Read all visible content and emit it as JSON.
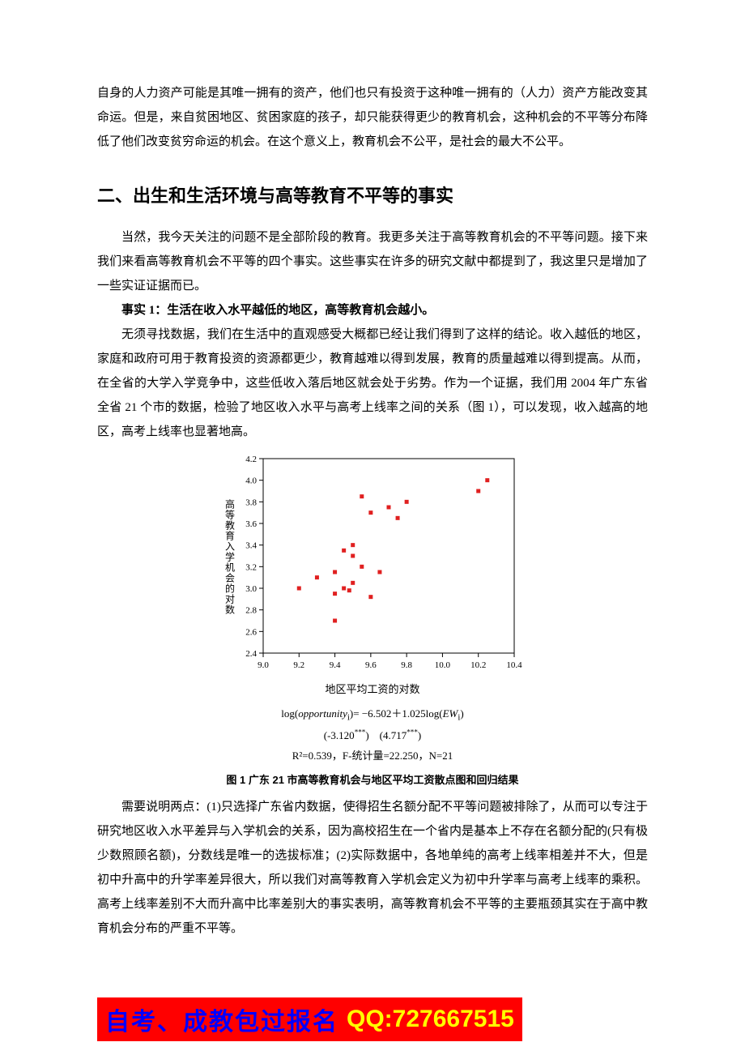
{
  "intro_paragraph": "自身的人力资产可能是其唯一拥有的资产，他们也只有投资于这种唯一拥有的（人力）资产方能改变其命运。但是，来自贫困地区、贫困家庭的孩子，却只能获得更少的教育机会，这种机会的不平等分布降低了他们改变贫穷命运的机会。在这个意义上，教育机会不公平，是社会的最大不公平。",
  "section_heading": "二、出生和生活环境与高等教育不平等的事实",
  "p2": "当然，我今天关注的问题不是全部阶段的教育。我更多关注于高等教育机会的不平等问题。接下来我们来看高等教育机会不平等的四个事实。这些事实在许多的研究文献中都提到了，我这里只是增加了一些实证证据而已。",
  "fact1_label": "事实 1：生活在收入水平越低的地区，高等教育机会越小。",
  "p3": "无须寻找数据，我们在生活中的直观感受大概都已经让我们得到了这样的结论。收入越低的地区，家庭和政府可用于教育投资的资源都更少，教育越难以得到发展，教育的质量越难以得到提高。从而，在全省的大学入学竞争中，这些低收入落后地区就会处于劣势。作为一个证据，我们用 2004 年广东省全省 21 个市的数据，检验了地区收入水平与高考上线率之间的关系（图 1），可以发现，收入越高的地区，高考上线率也显著地高。",
  "chart": {
    "type": "scatter",
    "y_label": "高等教育入学机会的对数",
    "x_label": "地区平均工资的对数",
    "xlim": [
      9.0,
      10.4
    ],
    "ylim": [
      2.4,
      4.2
    ],
    "xticks": [
      9.0,
      9.2,
      9.4,
      9.6,
      9.8,
      10.0,
      10.2,
      10.4
    ],
    "yticks": [
      2.4,
      2.6,
      2.8,
      3.0,
      3.2,
      3.4,
      3.6,
      3.8,
      4.0,
      4.2
    ],
    "marker_color": "#e02020",
    "marker_size": 5,
    "border_color": "#000000",
    "background_color": "#ffffff",
    "tick_fontsize": 11,
    "label_fontsize": 12,
    "points": [
      [
        9.2,
        3.0
      ],
      [
        9.3,
        3.1
      ],
      [
        9.4,
        2.7
      ],
      [
        9.4,
        2.95
      ],
      [
        9.4,
        3.15
      ],
      [
        9.45,
        3.0
      ],
      [
        9.45,
        3.35
      ],
      [
        9.48,
        2.98
      ],
      [
        9.5,
        3.05
      ],
      [
        9.5,
        3.3
      ],
      [
        9.5,
        3.4
      ],
      [
        9.55,
        3.2
      ],
      [
        9.55,
        3.85
      ],
      [
        9.6,
        2.92
      ],
      [
        9.6,
        3.7
      ],
      [
        9.65,
        3.15
      ],
      [
        9.7,
        3.75
      ],
      [
        9.75,
        3.65
      ],
      [
        9.8,
        3.8
      ],
      [
        10.2,
        3.9
      ],
      [
        10.25,
        4.0
      ]
    ]
  },
  "equation_line": "log(opportunity_i)= −6.502＋1.025log(EW_i)",
  "tstats_line": "(-3.120***)　(4.717***)",
  "rsq_line": "R²=0.539，F-统计量=22.250，N=21",
  "caption": "图 1  广东 21 市高等教育机会与地区平均工资散点图和回归结果",
  "p4": "需要说明两点：(1)只选择广东省内数据，使得招生名额分配不平等问题被排除了，从而可以专注于研究地区收入水平差异与入学机会的关系，因为高校招生在一个省内是基本上不存在名额分配的(只有极少数照顾名额)，分数线是唯一的选拔标准；(2)实际数据中，各地单纯的高考上线率相差并不大，但是初中升高中的升学率差异很大，所以我们对高等教育入学机会定义为初中升学率与高考上线率的乘积。高考上线率差别不大而升高中比率差别大的事实表明，高等教育机会不平等的主要瓶颈其实在于高中教育机会分布的严重不平等。",
  "banner": {
    "left": "自考、成教包过报名",
    "right": "QQ:727667515"
  }
}
